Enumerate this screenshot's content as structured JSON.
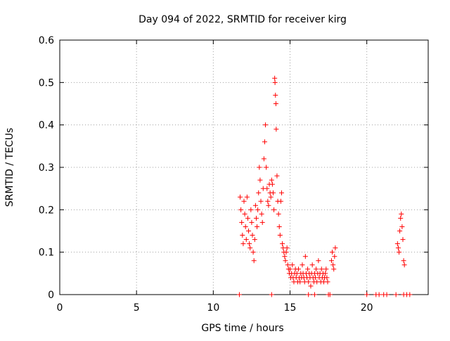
{
  "chart_data": {
    "type": "scatter",
    "title": "Day 094 of 2022, SRMTID for receiver kirg",
    "xlabel": "GPS time / hours",
    "ylabel": "SRMTID / TECUs",
    "xlim": [
      0,
      24
    ],
    "ylim": [
      0,
      0.6
    ],
    "xticks": [
      0,
      5,
      10,
      15,
      20
    ],
    "xtick_labels": [
      "0",
      "5",
      "10",
      "15",
      "20"
    ],
    "yticks": [
      0,
      0.1,
      0.2,
      0.3,
      0.4,
      0.5,
      0.6
    ],
    "ytick_labels": [
      "0",
      "0.1",
      "0.2",
      "0.3",
      "0.4",
      "0.5",
      "0.6"
    ],
    "grid": true,
    "marker": "plus",
    "series": [
      {
        "name": "SRMTID",
        "color": "#ff0000",
        "points": [
          [
            11.75,
            0.23
          ],
          [
            11.8,
            0.2
          ],
          [
            11.85,
            0.17
          ],
          [
            11.9,
            0.14
          ],
          [
            11.95,
            0.12
          ],
          [
            12.0,
            0.22
          ],
          [
            12.05,
            0.19
          ],
          [
            12.1,
            0.16
          ],
          [
            12.15,
            0.13
          ],
          [
            12.2,
            0.23
          ],
          [
            12.25,
            0.18
          ],
          [
            12.3,
            0.15
          ],
          [
            12.35,
            0.12
          ],
          [
            12.4,
            0.11
          ],
          [
            12.45,
            0.2
          ],
          [
            12.5,
            0.17
          ],
          [
            12.55,
            0.14
          ],
          [
            12.6,
            0.1
          ],
          [
            12.65,
            0.08
          ],
          [
            12.7,
            0.13
          ],
          [
            12.75,
            0.21
          ],
          [
            12.8,
            0.18
          ],
          [
            12.85,
            0.16
          ],
          [
            12.9,
            0.2
          ],
          [
            12.95,
            0.24
          ],
          [
            13.0,
            0.3
          ],
          [
            13.05,
            0.27
          ],
          [
            13.1,
            0.22
          ],
          [
            13.15,
            0.19
          ],
          [
            13.2,
            0.17
          ],
          [
            13.25,
            0.25
          ],
          [
            13.3,
            0.32
          ],
          [
            13.35,
            0.36
          ],
          [
            13.4,
            0.4
          ],
          [
            13.45,
            0.3
          ],
          [
            13.5,
            0.25
          ],
          [
            13.55,
            0.22
          ],
          [
            13.6,
            0.21
          ],
          [
            13.65,
            0.26
          ],
          [
            13.7,
            0.24
          ],
          [
            13.75,
            0.23
          ],
          [
            13.8,
            0.27
          ],
          [
            13.85,
            0.26
          ],
          [
            13.9,
            0.24
          ],
          [
            13.95,
            0.2
          ],
          [
            14.0,
            0.51
          ],
          [
            14.02,
            0.5
          ],
          [
            14.05,
            0.47
          ],
          [
            14.08,
            0.45
          ],
          [
            14.1,
            0.39
          ],
          [
            14.15,
            0.28
          ],
          [
            14.2,
            0.22
          ],
          [
            14.25,
            0.19
          ],
          [
            14.3,
            0.16
          ],
          [
            14.35,
            0.14
          ],
          [
            14.4,
            0.22
          ],
          [
            14.45,
            0.24
          ],
          [
            14.5,
            0.12
          ],
          [
            14.55,
            0.11
          ],
          [
            14.6,
            0.1
          ],
          [
            14.65,
            0.09
          ],
          [
            14.7,
            0.08
          ],
          [
            14.75,
            0.1
          ],
          [
            14.8,
            0.11
          ],
          [
            14.85,
            0.07
          ],
          [
            14.9,
            0.06
          ],
          [
            14.95,
            0.05
          ],
          [
            15.0,
            0.06
          ],
          [
            15.05,
            0.04
          ],
          [
            15.1,
            0.05
          ],
          [
            15.15,
            0.07
          ],
          [
            15.2,
            0.04
          ],
          [
            15.25,
            0.03
          ],
          [
            15.3,
            0.05
          ],
          [
            15.35,
            0.06
          ],
          [
            15.4,
            0.04
          ],
          [
            15.45,
            0.05
          ],
          [
            15.5,
            0.03
          ],
          [
            15.55,
            0.06
          ],
          [
            15.6,
            0.04
          ],
          [
            15.65,
            0.03
          ],
          [
            15.7,
            0.05
          ],
          [
            15.75,
            0.04
          ],
          [
            15.8,
            0.07
          ],
          [
            15.85,
            0.05
          ],
          [
            15.9,
            0.04
          ],
          [
            15.95,
            0.03
          ],
          [
            16.0,
            0.09
          ],
          [
            16.05,
            0.05
          ],
          [
            16.1,
            0.04
          ],
          [
            16.15,
            0.06
          ],
          [
            16.2,
            0.03
          ],
          [
            16.25,
            0.05
          ],
          [
            16.3,
            0.04
          ],
          [
            16.35,
            0.02
          ],
          [
            16.4,
            0.05
          ],
          [
            16.45,
            0.07
          ],
          [
            16.5,
            0.04
          ],
          [
            16.55,
            0.03
          ],
          [
            16.6,
            0.05
          ],
          [
            16.65,
            0.04
          ],
          [
            16.7,
            0.06
          ],
          [
            16.75,
            0.03
          ],
          [
            16.8,
            0.05
          ],
          [
            16.85,
            0.08
          ],
          [
            16.9,
            0.04
          ],
          [
            16.95,
            0.05
          ],
          [
            17.0,
            0.03
          ],
          [
            17.05,
            0.06
          ],
          [
            17.1,
            0.04
          ],
          [
            17.15,
            0.05
          ],
          [
            17.2,
            0.03
          ],
          [
            17.25,
            0.04
          ],
          [
            17.3,
            0.05
          ],
          [
            17.35,
            0.06
          ],
          [
            17.4,
            0.04
          ],
          [
            17.45,
            0.03
          ],
          [
            17.7,
            0.08
          ],
          [
            17.75,
            0.1
          ],
          [
            17.8,
            0.07
          ],
          [
            17.85,
            0.06
          ],
          [
            17.9,
            0.09
          ],
          [
            17.95,
            0.11
          ],
          [
            22.0,
            0.12
          ],
          [
            22.05,
            0.11
          ],
          [
            22.1,
            0.1
          ],
          [
            22.15,
            0.15
          ],
          [
            22.2,
            0.18
          ],
          [
            22.25,
            0.19
          ],
          [
            22.3,
            0.16
          ],
          [
            22.35,
            0.13
          ],
          [
            22.4,
            0.08
          ],
          [
            22.45,
            0.07
          ],
          [
            11.7,
            0.0
          ],
          [
            13.8,
            0.0
          ],
          [
            16.2,
            0.0
          ],
          [
            16.6,
            0.0
          ],
          [
            17.5,
            0.0
          ],
          [
            17.6,
            0.0
          ],
          [
            20.0,
            0.0
          ],
          [
            20.6,
            0.0
          ],
          [
            20.8,
            0.0
          ],
          [
            21.1,
            0.0
          ],
          [
            21.3,
            0.0
          ],
          [
            21.9,
            0.0
          ],
          [
            22.4,
            0.0
          ],
          [
            22.6,
            0.0
          ],
          [
            22.8,
            0.0
          ]
        ]
      }
    ]
  }
}
